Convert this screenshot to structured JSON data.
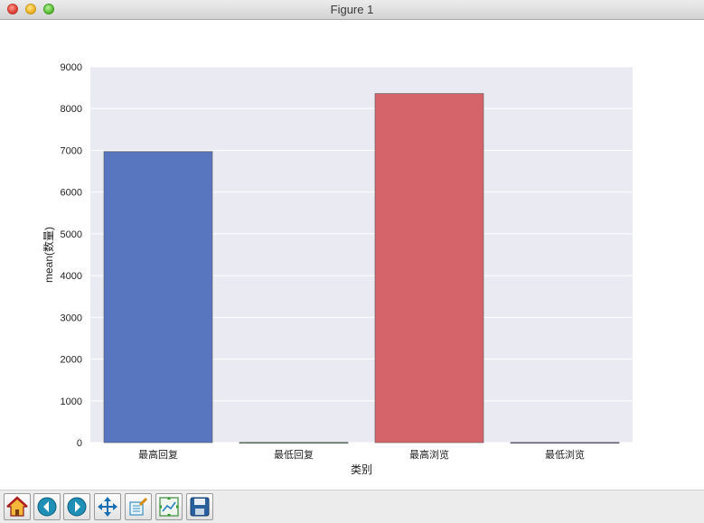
{
  "window": {
    "title": "Figure 1"
  },
  "toolbar": {
    "buttons": [
      {
        "name": "home",
        "icon": "home-icon"
      },
      {
        "name": "back",
        "icon": "back-arrow-icon"
      },
      {
        "name": "forward",
        "icon": "forward-arrow-icon"
      },
      {
        "name": "pan",
        "icon": "pan-arrows-icon"
      },
      {
        "name": "zoom",
        "icon": "zoom-rect-icon"
      },
      {
        "name": "subplots",
        "icon": "subplots-config-icon"
      },
      {
        "name": "save",
        "icon": "save-disk-icon"
      }
    ]
  },
  "chart_data": {
    "type": "bar",
    "title": "",
    "xlabel": "类别",
    "ylabel": "mean(数量)",
    "categories": [
      "最高回复",
      "最低回复",
      "最高浏览",
      "最低浏览"
    ],
    "values": [
      6970,
      5,
      8360,
      5
    ],
    "bar_colors": [
      "#5875c0",
      "#5fa85e",
      "#d5646a",
      "#8a74b8"
    ],
    "ylim": [
      0,
      9000
    ],
    "yticks": [
      "0",
      "1000",
      "2000",
      "3000",
      "4000",
      "5000",
      "6000",
      "7000",
      "8000",
      "9000"
    ],
    "grid": true,
    "background": "#eaeaf2"
  }
}
